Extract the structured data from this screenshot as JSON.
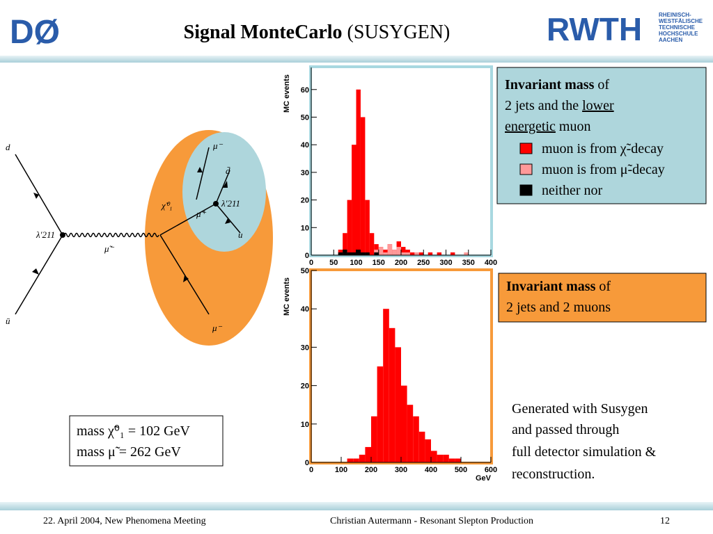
{
  "header": {
    "title_bold": "Signal MonteCarlo",
    "title_rest": "(SUSYGEN)",
    "logo_left": "DØ",
    "logo_right": "RWTH",
    "logo_right_sub": [
      "RHEINISCH-",
      "WESTFÄLISCHE",
      "TECHNISCHE",
      "HOCHSCHULE",
      "AACHEN"
    ]
  },
  "diagram": {
    "labels": [
      "d",
      "ū",
      "λ′211",
      "μ̃⁻",
      "χ̃⁰₁",
      "μ⁻",
      "d̄",
      "λ′211",
      "μ̃⁺",
      "u",
      "μ⁻"
    ]
  },
  "box_top": {
    "bold": "Invariant mass",
    "rest": "of",
    "line2": "2 jets and the",
    "underlined1": "lower",
    "underlined2": "energetic",
    "line3": "muon"
  },
  "box_bottom": {
    "bold": "Invariant mass",
    "rest": "of",
    "line2": "2 jets and 2 muons"
  },
  "note": [
    "Generated with Susygen",
    "and passed through",
    "full detector simulation &",
    "reconstruction."
  ],
  "mass_box": [
    "mass χ̃⁰₁ = 102 GeV",
    "mass μ̃  = 262 GeV"
  ],
  "footer": {
    "left": "22. April 2004, New Phenomena Meeting",
    "center": "Christian Autermann  -  Resonant Slepton Production",
    "right": "12"
  },
  "chart_data": [
    {
      "type": "histogram",
      "ylabel": "MC events",
      "bins": [
        0,
        10,
        20,
        30,
        40,
        50,
        60,
        70,
        80,
        90,
        100,
        110,
        120,
        130,
        140,
        150,
        160,
        170,
        180,
        190,
        200,
        210,
        220,
        230,
        240,
        250,
        260,
        270,
        280,
        290,
        300,
        310,
        320,
        330,
        340,
        350,
        360,
        370,
        380,
        390,
        400
      ],
      "series": [
        {
          "name": "muon is from χ̃-decay",
          "color": "#ff0000",
          "values": [
            0,
            0,
            0,
            0,
            0,
            0,
            2,
            8,
            20,
            40,
            60,
            50,
            20,
            8,
            4,
            3,
            2,
            4,
            2,
            5,
            3,
            2,
            1,
            1,
            1,
            0,
            1,
            0,
            1,
            0,
            0,
            1,
            0,
            0,
            0,
            0,
            0,
            0,
            0,
            0
          ]
        },
        {
          "name": "muon is from μ̃-decay",
          "color": "#ff9999",
          "values": [
            0,
            0,
            0,
            0,
            0,
            0,
            0,
            0,
            0,
            0,
            0,
            0,
            0,
            0,
            2,
            3,
            1,
            4,
            2,
            3,
            1,
            1,
            0,
            1,
            0,
            0,
            0,
            0,
            0,
            0,
            0,
            0,
            0,
            0,
            1,
            0,
            0,
            0,
            0,
            0
          ]
        },
        {
          "name": "neither nor",
          "color": "#000000",
          "values": [
            0,
            0,
            0,
            0,
            0,
            0,
            1,
            2,
            1,
            1,
            2,
            1,
            1,
            0,
            1,
            0,
            0,
            0,
            0,
            0,
            0,
            0,
            0,
            0,
            0,
            0,
            0,
            0,
            0,
            0,
            0,
            0,
            0,
            0,
            0,
            0,
            0,
            0,
            0,
            0
          ]
        }
      ],
      "xlim": [
        0,
        400
      ],
      "xticks": [
        0,
        50,
        100,
        150,
        200,
        250,
        300,
        350,
        400
      ],
      "ylim": [
        0,
        68
      ],
      "yticks": [
        0,
        10,
        20,
        30,
        40,
        50,
        60
      ]
    },
    {
      "type": "histogram",
      "ylabel": "MC events",
      "xlabel": "GeV",
      "bins": [
        0,
        20,
        40,
        60,
        80,
        100,
        120,
        140,
        160,
        180,
        200,
        220,
        240,
        260,
        280,
        300,
        320,
        340,
        360,
        380,
        400,
        420,
        440,
        460,
        480,
        500,
        520,
        540,
        560,
        580,
        600
      ],
      "series": [
        {
          "color": "#ff0000",
          "values": [
            0,
            0,
            0,
            0,
            0,
            0,
            1,
            1,
            2,
            4,
            12,
            25,
            40,
            35,
            30,
            20,
            15,
            12,
            8,
            6,
            3,
            2,
            2,
            1,
            1,
            0,
            0,
            0,
            0,
            0
          ]
        }
      ],
      "xlim": [
        0,
        600
      ],
      "xticks": [
        0,
        100,
        200,
        300,
        400,
        500,
        600
      ],
      "ylim": [
        0,
        50
      ],
      "yticks": [
        0,
        10,
        20,
        30,
        40,
        50
      ]
    }
  ]
}
